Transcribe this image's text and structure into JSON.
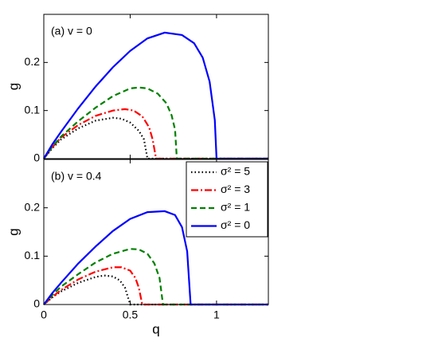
{
  "chart_data": [
    {
      "type": "line",
      "annotation": "(a) v = 0",
      "ylabel": "g",
      "xlim": [
        0,
        1.3
      ],
      "xticks": [
        0,
        0.5,
        1
      ],
      "xtick_labels": false,
      "ylim": [
        0,
        0.3
      ],
      "yticks": [
        0,
        0.1,
        0.2
      ],
      "series": [
        {
          "color": "#000000",
          "linestyle": "dotted",
          "x": [
            0,
            0.05,
            0.1,
            0.2,
            0.3,
            0.4,
            0.45,
            0.5,
            0.55,
            0.58,
            0.6,
            1.3
          ],
          "values": [
            0,
            0.022,
            0.04,
            0.063,
            0.079,
            0.085,
            0.083,
            0.075,
            0.058,
            0.04,
            0,
            0
          ]
        },
        {
          "color": "#ff0000",
          "linestyle": "dashdot",
          "x": [
            0,
            0.05,
            0.1,
            0.2,
            0.3,
            0.4,
            0.47,
            0.52,
            0.57,
            0.61,
            0.63,
            0.65,
            1.3
          ],
          "values": [
            0,
            0.024,
            0.044,
            0.07,
            0.089,
            0.1,
            0.103,
            0.1,
            0.088,
            0.065,
            0.04,
            0,
            0
          ]
        },
        {
          "color": "#008000",
          "linestyle": "dashed",
          "x": [
            0,
            0.05,
            0.1,
            0.2,
            0.3,
            0.4,
            0.5,
            0.55,
            0.6,
            0.66,
            0.71,
            0.74,
            0.76,
            0.77,
            1.3
          ],
          "values": [
            0,
            0.025,
            0.046,
            0.078,
            0.106,
            0.13,
            0.146,
            0.148,
            0.146,
            0.135,
            0.115,
            0.09,
            0.06,
            0,
            0
          ]
        },
        {
          "color": "#0000ff",
          "linestyle": "solid",
          "x": [
            0,
            0.05,
            0.1,
            0.2,
            0.3,
            0.4,
            0.5,
            0.6,
            0.7,
            0.8,
            0.87,
            0.92,
            0.96,
            0.99,
            1.0,
            1.3
          ],
          "values": [
            0,
            0.03,
            0.056,
            0.105,
            0.15,
            0.19,
            0.224,
            0.25,
            0.262,
            0.257,
            0.24,
            0.21,
            0.16,
            0.08,
            0,
            0
          ]
        }
      ]
    },
    {
      "type": "line",
      "annotation": "(b) v = 0.4",
      "ylabel": "g",
      "xlabel": "q",
      "xlim": [
        0,
        1.3
      ],
      "xticks": [
        0,
        0.5,
        1
      ],
      "xtick_labels": true,
      "ylim": [
        0,
        0.3
      ],
      "yticks": [
        0,
        0.1,
        0.2
      ],
      "legend": "upper right",
      "series": [
        {
          "name": "σ² = 5",
          "color": "#000000",
          "linestyle": "dotted",
          "x": [
            0,
            0.05,
            0.1,
            0.2,
            0.3,
            0.35,
            0.4,
            0.44,
            0.47,
            0.5,
            1.3
          ],
          "values": [
            0,
            0.015,
            0.027,
            0.045,
            0.057,
            0.06,
            0.058,
            0.05,
            0.035,
            0,
            0
          ]
        },
        {
          "name": "σ² = 3",
          "color": "#ff0000",
          "linestyle": "dashdot",
          "x": [
            0,
            0.05,
            0.1,
            0.2,
            0.3,
            0.4,
            0.45,
            0.5,
            0.53,
            0.55,
            0.57,
            1.3
          ],
          "values": [
            0,
            0.016,
            0.03,
            0.052,
            0.068,
            0.077,
            0.077,
            0.07,
            0.055,
            0.035,
            0,
            0
          ]
        },
        {
          "name": "σ² = 1",
          "color": "#008000",
          "linestyle": "dashed",
          "x": [
            0,
            0.05,
            0.1,
            0.2,
            0.3,
            0.4,
            0.5,
            0.55,
            0.6,
            0.64,
            0.67,
            0.69,
            1.3
          ],
          "values": [
            0,
            0.02,
            0.037,
            0.063,
            0.087,
            0.105,
            0.115,
            0.114,
            0.105,
            0.085,
            0.055,
            0,
            0
          ]
        },
        {
          "name": "σ² = 0",
          "color": "#0000ff",
          "linestyle": "solid",
          "x": [
            0,
            0.05,
            0.1,
            0.2,
            0.3,
            0.4,
            0.5,
            0.6,
            0.7,
            0.76,
            0.8,
            0.83,
            0.85,
            1.3
          ],
          "values": [
            0,
            0.024,
            0.045,
            0.085,
            0.12,
            0.152,
            0.177,
            0.191,
            0.193,
            0.185,
            0.16,
            0.11,
            0,
            0
          ]
        }
      ]
    }
  ]
}
